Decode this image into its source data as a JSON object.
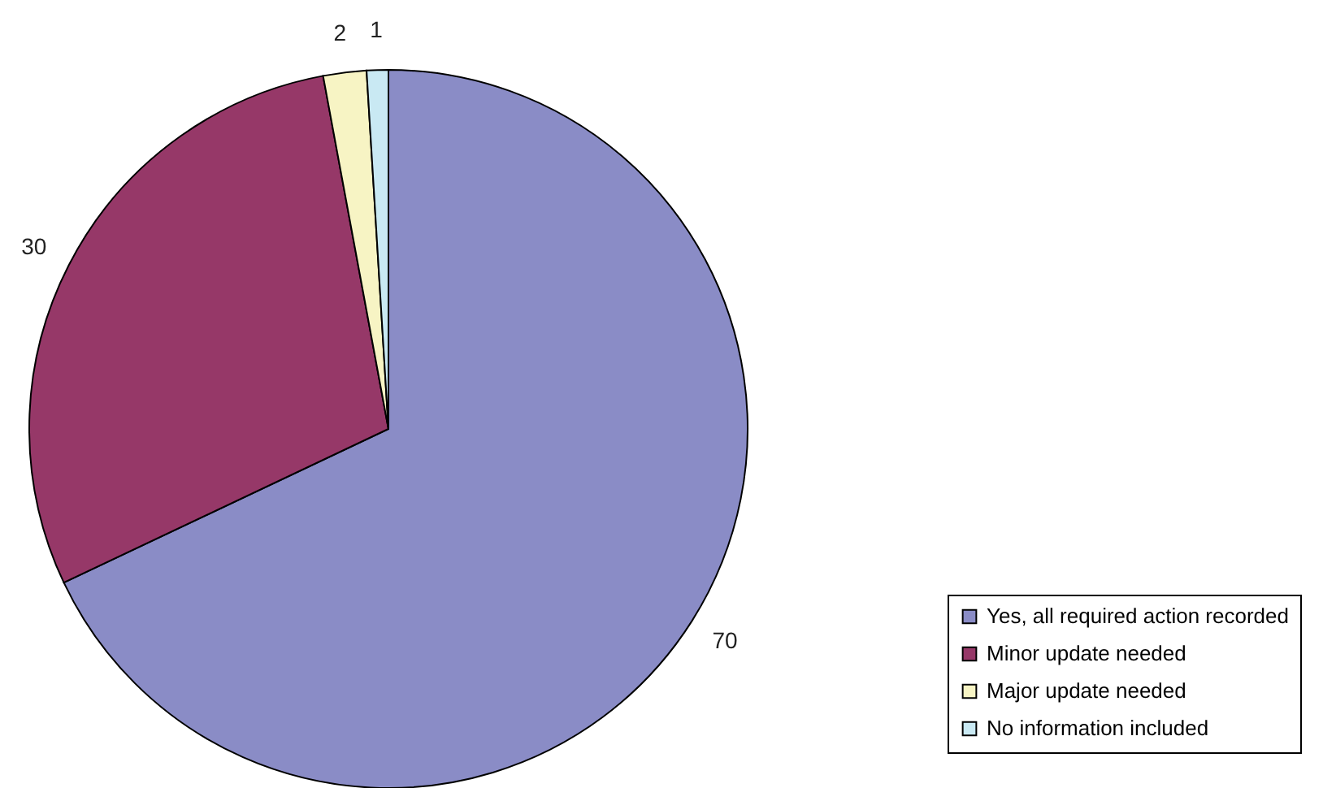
{
  "chart_data": {
    "type": "pie",
    "categories": [
      "Yes, all required action recorded",
      "Minor update needed",
      "Major update needed",
      "No information included"
    ],
    "values": [
      70,
      30,
      2,
      1
    ],
    "colors": [
      "#8a8cc6",
      "#963868",
      "#f7f4c4",
      "#c9e9f3"
    ],
    "data_labels": true,
    "legend": "bottom right"
  }
}
